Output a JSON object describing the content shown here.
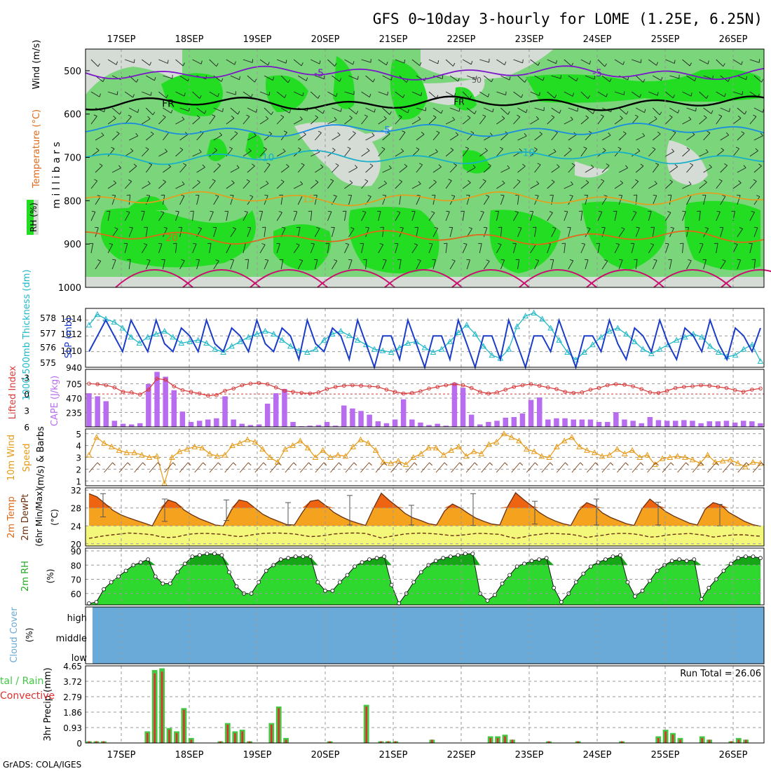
{
  "header": {
    "title": "GFS 0~10day 3-hourly for LOME (1.25E, 6.25N)",
    "credit": "GrADS: COLA/IGES"
  },
  "dates": [
    "17SEP",
    "18SEP",
    "19SEP",
    "20SEP",
    "21SEP",
    "22SEP",
    "23SEP",
    "24SEP",
    "25SEP",
    "26SEP"
  ],
  "colors": {
    "rh_light": "#d5dcd5",
    "rh_mid": "#7bd67b",
    "rh_high": "#22dd22",
    "purple": "#7b16c8",
    "blue": "#1a8ce0",
    "cyan": "#17b0c8",
    "orange": "#e0a020",
    "dark_orange": "#e06818",
    "magenta": "#c8106e",
    "slp": "#1a3cc8",
    "thickness": "#20b8c8",
    "lifted": "#d83a3a",
    "cape": "#b86cf0",
    "wind10": "#e69a18",
    "temp_fill": "#f5a21e",
    "temp_hot": "#ee6410",
    "dew_fill": "#f4f87a",
    "rh_green": "#2ed82e",
    "rh_dark": "#16a516",
    "cloud": "#6aaad8",
    "rain_green": "#44c844",
    "rain_red": "#e03030"
  },
  "chart_data": [
    {
      "type": "heatmap",
      "name": "upper-air",
      "ylabel": "m i l l i b a r s",
      "legend_labels": [
        "RH (%)",
        "Temperature (°C)",
        "Wind (m/s)"
      ],
      "y_ticks": [
        500,
        600,
        700,
        800,
        900,
        1000
      ],
      "contour_labels": [
        "-5",
        "FR",
        "-5",
        "-10",
        "15",
        "20"
      ],
      "annotation": "50",
      "isotherms": [
        {
          "label": "-5",
          "level_mb": 505
        },
        {
          "label": "FR",
          "level_mb": 575
        },
        {
          "label": "-5",
          "level_mb": 637
        },
        {
          "label": "-10",
          "level_mb": 700
        },
        {
          "label": "15",
          "level_mb": 795
        },
        {
          "label": "20",
          "level_mb": 885
        }
      ]
    },
    {
      "type": "line",
      "name": "slp-thickness",
      "ylabel_left": "1000-500mb Thickness (dm)",
      "ylabel_right": "SLP (mb)",
      "left_ticks": [
        578,
        577,
        576,
        575
      ],
      "right_ticks": [
        1014,
        1012,
        1010,
        940
      ],
      "slp": [
        1010,
        1012,
        1014,
        1012,
        1010,
        1014,
        1012,
        1010,
        1014,
        1011,
        1010,
        1013,
        1012,
        1010,
        1014,
        1011,
        1010,
        1013,
        1012,
        1010,
        1014,
        1011,
        1010,
        1013,
        1012,
        1009,
        1014,
        1011,
        1010,
        1013,
        1012,
        1009,
        1014,
        1011,
        1008,
        1012,
        1012,
        1009,
        1014,
        1011,
        1008,
        1012,
        1012,
        1009,
        1014,
        1011,
        1008,
        1012,
        1012,
        1009,
        1014,
        1011,
        1008,
        1012,
        1012,
        1010,
        1014,
        1011,
        1008,
        1012,
        1012,
        1010,
        1014,
        1011,
        1009,
        1013,
        1012,
        1010,
        1014,
        1011,
        1009,
        1013,
        1012,
        1010,
        1014,
        1011,
        1009,
        1013,
        1012,
        1010,
        1013
      ],
      "thickness": [
        577.6,
        578.3,
        578.0,
        577.8,
        577.4,
        576.8,
        576.4,
        576.8,
        577.0,
        577.2,
        576.8,
        576.4,
        576.5,
        576.6,
        576.4,
        576.0,
        575.8,
        576.2,
        576.5,
        576.8,
        577.0,
        577.2,
        577.0,
        576.6,
        576.2,
        575.9,
        575.8,
        576.0,
        576.6,
        577.0,
        577.2,
        576.9,
        576.6,
        576.3,
        576.0,
        575.9,
        575.8,
        576.1,
        576.4,
        576.5,
        576.1,
        575.8,
        576.0,
        576.5,
        577.1,
        577.6,
        577.0,
        576.2,
        575.6,
        575.4,
        576.0,
        577.5,
        578.2,
        578.4,
        578.0,
        577.4,
        576.6,
        575.8,
        575.3,
        575.8,
        576.3,
        576.8,
        577.2,
        577.4,
        577.0,
        576.5,
        576.0,
        575.7,
        576.0,
        576.3,
        576.6,
        576.8,
        577.0,
        576.8,
        576.2,
        575.8,
        575.5,
        575.6,
        576.0,
        576.3,
        575.2
      ]
    },
    {
      "type": "bar",
      "name": "cape-lifted",
      "ylabel_left": "Lifted Index",
      "ylabel_right": "CAPE (J/kg)",
      "left_ticks": [
        -3,
        0,
        3,
        6
      ],
      "right_ticks": [
        705,
        470,
        235
      ],
      "cape": [
        550,
        500,
        420,
        100,
        50,
        40,
        60,
        700,
        900,
        820,
        600,
        250,
        80,
        100,
        120,
        140,
        500,
        120,
        50,
        30,
        40,
        380,
        550,
        620,
        80,
        10,
        20,
        30,
        80,
        20,
        350,
        300,
        260,
        200,
        90,
        60,
        120,
        450,
        120,
        70,
        30,
        50,
        20,
        720,
        640,
        200,
        40,
        80,
        100,
        150,
        160,
        220,
        440,
        480,
        120,
        140,
        140,
        120,
        120,
        120,
        80,
        80,
        240,
        120,
        100,
        60,
        160,
        110,
        100,
        100,
        110,
        100,
        60,
        90,
        90,
        100,
        70,
        100,
        90,
        60
      ],
      "lifted_index": [
        -1.9,
        -1.8,
        -1.6,
        -1.2,
        -0.4,
        -0.3,
        0.1,
        -0.8,
        -2.8,
        -2.6,
        -1.4,
        -0.7,
        -0.4,
        -0.1,
        0.3,
        0.2,
        -0.6,
        -1.0,
        -1.6,
        -1.9,
        -2.0,
        -1.8,
        -1.2,
        -0.6,
        -0.4,
        -0.2,
        -0.1,
        -0.3,
        -0.9,
        -1.3,
        -1.5,
        -1.6,
        -1.5,
        -1.4,
        -1.3,
        -0.8,
        -0.4,
        -0.1,
        -0.2,
        -0.5,
        -1.0,
        -1.3,
        -1.6,
        -1.8,
        -1.6,
        -1.1,
        -0.4,
        -0.1,
        -0.3,
        -0.8,
        -1.3,
        -1.6,
        -1.8,
        -1.5,
        -1.2,
        -0.9,
        -0.4,
        -0.2,
        -0.3,
        -0.8,
        -1.1,
        -1.6,
        -1.8,
        -1.7,
        -1.4,
        -0.9,
        -0.3,
        -0.2,
        -0.6,
        -1.1,
        -1.3,
        -1.4,
        -1.6,
        -1.5,
        -1.3,
        -1.1,
        -0.7,
        -0.4,
        -0.8,
        -1.0
      ]
    },
    {
      "type": "line",
      "name": "wind10m",
      "ylabel": "10m Wind Speed (m/s) & Barbs",
      "y_ticks": [
        5,
        4,
        3,
        2,
        1
      ],
      "ylim": [
        0.6,
        5.4
      ],
      "speed": [
        3.2,
        4.7,
        4.2,
        3.9,
        3.6,
        3.4,
        3.4,
        3.2,
        3.0,
        3.1,
        0.8,
        3.0,
        3.5,
        3.7,
        3.9,
        3.8,
        3.3,
        3.1,
        3.2,
        4.0,
        4.2,
        4.5,
        4.3,
        3.7,
        3.0,
        2.6,
        3.7,
        4.0,
        4.4,
        3.8,
        3.0,
        3.6,
        3.0,
        3.2,
        3.1,
        3.9,
        4.5,
        4.2,
        3.6,
        2.6,
        2.5,
        2.7,
        2.4,
        3.0,
        3.3,
        3.8,
        3.8,
        3.2,
        3.6,
        3.9,
        3.1,
        3.5,
        3.3,
        4.1,
        4.3,
        5.0,
        4.7,
        4.4,
        3.7,
        3.5,
        3.1,
        3.0,
        3.9,
        4.4,
        4.7,
        3.9,
        3.6,
        3.4,
        3.1,
        3.2,
        3.7,
        3.3,
        3.6,
        3.0,
        3.2,
        2.4,
        2.9,
        3.0,
        3.1,
        3.0,
        2.8,
        2.5,
        3.2,
        2.6,
        2.7,
        2.8,
        2.5,
        2.2,
        2.6,
        2.5
      ],
      "barbs": "10m wind barbs, NE to SW"
    },
    {
      "type": "area",
      "name": "temperature",
      "ylabel": "2m Temp 2m DewPt (6hr Min/Max) (°C)",
      "y_ticks": [
        32,
        28,
        24,
        20
      ],
      "ylim": [
        19.5,
        32.5
      ],
      "temp": [
        31.2,
        30.5,
        29.0,
        27.5,
        26.5,
        25.8,
        25.2,
        24.6,
        24.0,
        27.3,
        29.8,
        29.2,
        27.6,
        26.5,
        25.6,
        24.9,
        24.2,
        24.0,
        27.5,
        29.8,
        29.4,
        28.0,
        26.6,
        25.7,
        25.0,
        24.3,
        24.2,
        27.0,
        29.5,
        29.8,
        28.5,
        27.0,
        26.0,
        25.2,
        24.6,
        24.1,
        27.9,
        31.3,
        29.7,
        28.3,
        26.8,
        25.8,
        25.2,
        24.5,
        24.2,
        27.3,
        28.9,
        28.0,
        26.8,
        25.7,
        25.0,
        24.4,
        24.2,
        28.3,
        31.4,
        29.9,
        28.5,
        27.0,
        25.9,
        25.1,
        24.5,
        24.1,
        27.4,
        29.2,
        28.5,
        26.9,
        25.9,
        25.2,
        24.5,
        24.1,
        27.8,
        30.0,
        28.6,
        27.2,
        26.2,
        25.4,
        24.6,
        24.2,
        27.7,
        29.2,
        28.7,
        27.0,
        26.0,
        25.0,
        24.3,
        23.9
      ],
      "dewpoint": [
        21.2,
        21.5,
        21.8,
        22.0,
        22.2,
        22.4,
        22.3,
        22.2,
        22.0,
        21.6,
        21.4,
        21.5,
        21.9,
        22.2,
        22.3,
        22.3,
        22.2,
        22.1,
        21.8,
        21.6,
        21.8,
        22.1,
        22.3,
        22.4,
        22.4,
        22.3,
        22.2,
        21.9,
        21.6,
        21.7,
        21.9,
        22.2,
        22.3,
        22.4,
        22.4,
        22.3,
        21.8,
        21.3,
        21.6,
        21.9,
        22.2,
        22.3,
        22.4,
        22.3,
        22.2,
        22.0,
        21.8,
        21.9,
        22.1,
        22.3,
        22.3,
        22.2,
        22.1,
        21.6,
        21.2,
        21.5,
        21.9,
        22.1,
        22.3,
        22.3,
        22.2,
        22.1,
        21.8,
        21.4,
        21.7,
        21.9,
        22.2,
        22.3,
        22.3,
        22.2,
        21.9,
        21.5,
        21.6,
        21.9,
        22.1,
        22.2,
        22.3,
        22.1,
        21.9,
        21.5,
        21.7,
        21.9,
        22.0,
        22.0,
        21.8,
        21.7
      ],
      "maxmin": [
        [
          31.2,
          26.0
        ],
        [
          30.0,
          25.0
        ],
        [
          29.8,
          25.2
        ],
        [
          29.2,
          24.1
        ],
        [
          30.8,
          24.2
        ],
        [
          28.6,
          24.2
        ],
        [
          31.2,
          24.1
        ],
        [
          29.5,
          24.4
        ],
        [
          30.0,
          24.2
        ],
        [
          29.3,
          24.2
        ],
        [
          28.8,
          24.0
        ]
      ]
    },
    {
      "type": "area",
      "name": "rh2m",
      "ylabel": "2m RH (%)",
      "y_ticks": [
        90,
        80,
        70,
        60
      ],
      "ylim": [
        52,
        92
      ],
      "rh": [
        53,
        54,
        63,
        68,
        72,
        76,
        80,
        82,
        84,
        72,
        67,
        67,
        75,
        81,
        86,
        87,
        88,
        88,
        87,
        75,
        65,
        60,
        60,
        68,
        76,
        80,
        84,
        85,
        86,
        86,
        86,
        68,
        62,
        62,
        68,
        73,
        79,
        82,
        84,
        85,
        86,
        66,
        53,
        60,
        68,
        75,
        80,
        83,
        85,
        86,
        87,
        88,
        88,
        60,
        55,
        59,
        67,
        73,
        79,
        81,
        83,
        84,
        85,
        64,
        54,
        60,
        68,
        74,
        79,
        82,
        84,
        86,
        87,
        68,
        58,
        62,
        69,
        76,
        80,
        83,
        84,
        83,
        84,
        56,
        64,
        70,
        76,
        81,
        85,
        86,
        86,
        85
      ]
    },
    {
      "type": "heatmap",
      "name": "cloud-cover",
      "ylabel": "Cloud Cover (%)",
      "layers": [
        "high",
        "middle",
        "low"
      ],
      "ylim": [
        0,
        100
      ]
    },
    {
      "type": "bar",
      "name": "precip",
      "ylabel": "3hr Precip (mm)",
      "legend": "Total / Rain  Convective",
      "annotation": "Run Total = 26.06",
      "y_ticks": [
        4.65,
        3.72,
        2.79,
        1.86,
        0.93,
        0
      ],
      "ylim": [
        0,
        4.65
      ],
      "total": [
        0.1,
        0.1,
        0.1,
        0.0,
        0.0,
        0.0,
        0.0,
        0.0,
        0.7,
        4.4,
        4.5,
        0.9,
        0.7,
        2.1,
        0.3,
        0.0,
        0.0,
        0.0,
        0.1,
        1.2,
        0.7,
        0.8,
        0.1,
        0.0,
        0.0,
        1.2,
        2.2,
        0.3,
        0.0,
        0.0,
        0.0,
        0.0,
        0.0,
        0.1,
        0.0,
        0.0,
        0.0,
        0.0,
        2.3,
        0.0,
        0.1,
        0.1,
        0.1,
        0.0,
        0.0,
        0.0,
        0.0,
        0.2,
        0.0,
        0.0,
        0.0,
        0.0,
        0.0,
        0.0,
        0.0,
        0.4,
        0.4,
        0.5,
        0.2,
        0.0,
        0.0,
        0.0,
        0.0,
        0.1,
        0.0,
        0.0,
        0.0,
        0.1,
        0.0,
        0.0,
        0.0,
        0.0,
        0.0,
        0.1,
        0.0,
        0.0,
        0.0,
        0.0,
        0.4,
        0.8,
        0.6,
        0.3,
        0.0,
        0.0,
        0.4,
        0.2,
        0.0,
        0.0,
        0.1,
        0.3,
        0.2,
        0.0,
        0.0
      ],
      "convective": [
        0.1,
        0.1,
        0.1,
        0.0,
        0.0,
        0.0,
        0.0,
        0.0,
        0.6,
        4.2,
        4.3,
        0.8,
        0.6,
        2.0,
        0.2,
        0.0,
        0.0,
        0.0,
        0.1,
        1.1,
        0.6,
        0.7,
        0.1,
        0.0,
        0.0,
        1.1,
        2.1,
        0.2,
        0.0,
        0.0,
        0.0,
        0.0,
        0.0,
        0.1,
        0.0,
        0.0,
        0.0,
        0.0,
        2.2,
        0.0,
        0.1,
        0.1,
        0.1,
        0.0,
        0.0,
        0.0,
        0.0,
        0.2,
        0.0,
        0.0,
        0.0,
        0.0,
        0.0,
        0.0,
        0.0,
        0.3,
        0.3,
        0.4,
        0.2,
        0.0,
        0.0,
        0.0,
        0.0,
        0.1,
        0.0,
        0.0,
        0.0,
        0.1,
        0.0,
        0.0,
        0.0,
        0.0,
        0.0,
        0.1,
        0.0,
        0.0,
        0.0,
        0.0,
        0.3,
        0.7,
        0.5,
        0.2,
        0.0,
        0.0,
        0.3,
        0.2,
        0.0,
        0.0,
        0.1,
        0.2,
        0.2,
        0.0,
        0.0
      ]
    }
  ]
}
